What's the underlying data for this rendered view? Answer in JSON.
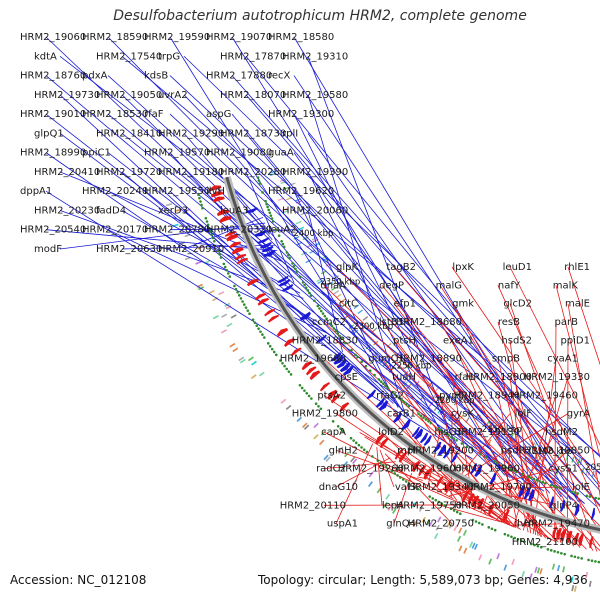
{
  "title": "Desulfobacterium autotrophicum HRM2, complete genome",
  "footer": {
    "accession": "Accession: NC_012108",
    "summary": "Topology: circular; Length: 5,589,073 bp; Genes: 4,936"
  },
  "colors": {
    "forward": "#1a1ad6",
    "reverse": "#e51a1a",
    "backbone": "#555555",
    "gc_skew": "#2e8b2e",
    "label_text": "#1a1a1a"
  },
  "kbp_ticks": [
    {
      "kbp": 2000,
      "label": "2000 kbp"
    },
    {
      "kbp": 2050,
      "label": "2050 kbp"
    },
    {
      "kbp": 2100,
      "label": "2100 kbp"
    },
    {
      "kbp": 2150,
      "label": "2150 kbp"
    },
    {
      "kbp": 2200,
      "label": "2200 kbp"
    },
    {
      "kbp": 2250,
      "label": "2250 kbp"
    },
    {
      "kbp": 2300,
      "label": "2300 kbp"
    },
    {
      "kbp": 2350,
      "label": "2350 kbp"
    },
    {
      "kbp": 2400,
      "label": "2400 kbp"
    }
  ],
  "forward_genes": [
    {
      "name": "HRM2_19060",
      "pos_kbp": 2125
    },
    {
      "name": "HRM2_18590",
      "pos_kbp": 2075
    },
    {
      "name": "HRM2_19590",
      "pos_kbp": 2230
    },
    {
      "name": "HRM2_19070",
      "pos_kbp": 2128
    },
    {
      "name": "HRM2_18580",
      "pos_kbp": 2072
    },
    {
      "name": "kdtA",
      "pos_kbp": 2000
    },
    {
      "name": "HRM2_17540",
      "pos_kbp": 1985
    },
    {
      "name": "trpG",
      "pos_kbp": 1995
    },
    {
      "name": "HRM2_17870",
      "pos_kbp": 2030
    },
    {
      "name": "HRM2_19310",
      "pos_kbp": 2175
    },
    {
      "name": "HRM2_18760",
      "pos_kbp": 2100
    },
    {
      "name": "pdxA",
      "pos_kbp": 2060
    },
    {
      "name": "kdsB",
      "pos_kbp": 2010
    },
    {
      "name": "HRM2_17880",
      "pos_kbp": 2032
    },
    {
      "name": "recX",
      "pos_kbp": 2065
    },
    {
      "name": "HRM2_19730",
      "pos_kbp": 2250
    },
    {
      "name": "HRM2_19050",
      "pos_kbp": 2122
    },
    {
      "name": "uvrA2",
      "pos_kbp": 2070
    },
    {
      "name": "HRM2_18070",
      "pos_kbp": 2045
    },
    {
      "name": "HRM2_19580",
      "pos_kbp": 2228
    },
    {
      "name": "HRM2_19010",
      "pos_kbp": 2118
    },
    {
      "name": "HRM2_18530",
      "pos_kbp": 2068
    },
    {
      "name": "rfaF",
      "pos_kbp": 2050
    },
    {
      "name": "aspG",
      "pos_kbp": 2090
    },
    {
      "name": "HRM2_19300",
      "pos_kbp": 2172
    },
    {
      "name": "glpQ1",
      "pos_kbp": 2105
    },
    {
      "name": "HRM2_18410",
      "pos_kbp": 2060
    },
    {
      "name": "HRM2_19290",
      "pos_kbp": 2170
    },
    {
      "name": "HRM2_18730",
      "pos_kbp": 2098
    },
    {
      "name": "rplI",
      "pos_kbp": 2080
    },
    {
      "name": "HRM2_18990",
      "pos_kbp": 2115
    },
    {
      "name": "ppiC1",
      "pos_kbp": 2095
    },
    {
      "name": "HRM2_19570",
      "pos_kbp": 2225
    },
    {
      "name": "HRM2_19080",
      "pos_kbp": 2130
    },
    {
      "name": "guaA",
      "pos_kbp": 2110
    },
    {
      "name": "HRM2_20410",
      "pos_kbp": 2390
    },
    {
      "name": "HRM2_19720",
      "pos_kbp": 2248
    },
    {
      "name": "HRM2_19180",
      "pos_kbp": 2140
    },
    {
      "name": "HRM2_20280",
      "pos_kbp": 2370
    },
    {
      "name": "HRM2_19390",
      "pos_kbp": 2185
    },
    {
      "name": "dppA1",
      "pos_kbp": 2160
    },
    {
      "name": "HRM2_20240",
      "pos_kbp": 2360
    },
    {
      "name": "HRM2_19550",
      "pos_kbp": 2220
    },
    {
      "name": "ilvH",
      "pos_kbp": 2410
    },
    {
      "name": "HRM2_19620",
      "pos_kbp": 2235
    },
    {
      "name": "HRM2_20230",
      "pos_kbp": 2355
    },
    {
      "name": "fadD4",
      "pos_kbp": 2330
    },
    {
      "name": "xerD3",
      "pos_kbp": 2240
    },
    {
      "name": "leuA3",
      "pos_kbp": 2415
    },
    {
      "name": "HRM2_20060",
      "pos_kbp": 2300
    },
    {
      "name": "HRM2_20540",
      "pos_kbp": 2400
    },
    {
      "name": "HRM2_20170",
      "pos_kbp": 2320
    },
    {
      "name": "HRM2_20780",
      "pos_kbp": 2420
    },
    {
      "name": "HRM2_20320",
      "pos_kbp": 2375
    },
    {
      "name": "leuA2",
      "pos_kbp": 2418
    },
    {
      "name": "modF",
      "pos_kbp": 2425
    },
    {
      "name": "HRM2_20630",
      "pos_kbp": 2405
    },
    {
      "name": "HRM2_20910",
      "pos_kbp": 2430
    }
  ],
  "reverse_genes": [
    {
      "name": "rhlE1",
      "pos_kbp": 1990
    },
    {
      "name": "leuD1",
      "pos_kbp": 1995
    },
    {
      "name": "lpxK",
      "pos_kbp": 2000
    },
    {
      "name": "tagB2",
      "pos_kbp": 2005
    },
    {
      "name": "glpK",
      "pos_kbp": 2015
    },
    {
      "name": "malK",
      "pos_kbp": 2020
    },
    {
      "name": "nafY",
      "pos_kbp": 2025
    },
    {
      "name": "malG",
      "pos_kbp": 2028
    },
    {
      "name": "degP",
      "pos_kbp": 2035
    },
    {
      "name": "dnaA",
      "pos_kbp": 2038
    },
    {
      "name": "malE",
      "pos_kbp": 2032
    },
    {
      "name": "glcD2",
      "pos_kbp": 2042
    },
    {
      "name": "gmk",
      "pos_kbp": 2045
    },
    {
      "name": "efp1",
      "pos_kbp": 2055
    },
    {
      "name": "citC",
      "pos_kbp": 2050
    },
    {
      "name": "parB",
      "pos_kbp": 2075
    },
    {
      "name": "resB",
      "pos_kbp": 2070
    },
    {
      "name": "HRM2_18680",
      "pos_kbp": 2060
    },
    {
      "name": "lstB1",
      "pos_kbp": 2080
    },
    {
      "name": "ccmC2",
      "pos_kbp": 2072
    },
    {
      "name": "ppiD1",
      "pos_kbp": 2065
    },
    {
      "name": "hsdS2",
      "pos_kbp": 2090
    },
    {
      "name": "exeA1",
      "pos_kbp": 2085
    },
    {
      "name": "ptsH",
      "pos_kbp": 2082
    },
    {
      "name": "HRM2_18830",
      "pos_kbp": 2078
    },
    {
      "name": "cyaA1",
      "pos_kbp": 2092
    },
    {
      "name": "smpB",
      "pos_kbp": 2088
    },
    {
      "name": "HRM2_18890",
      "pos_kbp": 2086
    },
    {
      "name": "gumC1",
      "pos_kbp": 2110
    },
    {
      "name": "HRM2_19680",
      "pos_kbp": 2115
    },
    {
      "name": "HRM2_19330",
      "pos_kbp": 2100
    },
    {
      "name": "HRM2_18900",
      "pos_kbp": 2094
    },
    {
      "name": "rfaL",
      "pos_kbp": 2140
    },
    {
      "name": "tuaH",
      "pos_kbp": 2130
    },
    {
      "name": "cpsE",
      "pos_kbp": 2125
    },
    {
      "name": "HRM2_19460",
      "pos_kbp": 2108
    },
    {
      "name": "HRM2_18940",
      "pos_kbp": 2096
    },
    {
      "name": "pyrK",
      "pos_kbp": 2150
    },
    {
      "name": "rfaG2",
      "pos_kbp": 2145
    },
    {
      "name": "ptsA2",
      "pos_kbp": 2102
    },
    {
      "name": "gyrA",
      "pos_kbp": 2170
    },
    {
      "name": "lolF",
      "pos_kbp": 2165
    },
    {
      "name": "cysK",
      "pos_kbp": 2160
    },
    {
      "name": "carB1",
      "pos_kbp": 2155
    },
    {
      "name": "HRM2_19800",
      "pos_kbp": 2120
    },
    {
      "name": "hsdM2",
      "pos_kbp": 2118
    },
    {
      "name": "HRM2_19130",
      "pos_kbp": 2104
    },
    {
      "name": "hisC1",
      "pos_kbp": 2180
    },
    {
      "name": "lolD2",
      "pos_kbp": 2168
    },
    {
      "name": "capA",
      "pos_kbp": 2158
    },
    {
      "name": "HRM2_19850",
      "pos_kbp": 2122
    },
    {
      "name": "hsdR2",
      "pos_kbp": 2116
    },
    {
      "name": "HRM2_19200",
      "pos_kbp": 2106
    },
    {
      "name": "mpl",
      "pos_kbp": 2200
    },
    {
      "name": "glnH2",
      "pos_kbp": 2185
    },
    {
      "name": "cysS1",
      "pos_kbp": 2162
    },
    {
      "name": "HRM2_19960",
      "pos_kbp": 2135
    },
    {
      "name": "HRM2_19600",
      "pos_kbp": 2112
    },
    {
      "name": "HRM2_19260",
      "pos_kbp": 2107
    },
    {
      "name": "radC2",
      "pos_kbp": 2210
    },
    {
      "name": "lolE",
      "pos_kbp": 2172
    },
    {
      "name": "HRM2_19700",
      "pos_kbp": 2114
    },
    {
      "name": "HRM2_19340",
      "pos_kbp": 2109
    },
    {
      "name": "valS",
      "pos_kbp": 2225
    },
    {
      "name": "dnaG10",
      "pos_kbp": 2215
    },
    {
      "name": "glnP4",
      "pos_kbp": 2190
    },
    {
      "name": "HRM2_20050",
      "pos_kbp": 2142
    },
    {
      "name": "HRM2_19750",
      "pos_kbp": 2117
    },
    {
      "name": "lepA",
      "pos_kbp": 2228
    },
    {
      "name": "HRM2_20110",
      "pos_kbp": 2148
    },
    {
      "name": "HRM2_19470",
      "pos_kbp": 2111
    },
    {
      "name": "ilvY",
      "pos_kbp": 2240
    },
    {
      "name": "HRM2_20750",
      "pos_kbp": 2220
    },
    {
      "name": "glnQ4",
      "pos_kbp": 2195
    },
    {
      "name": "uspA1",
      "pos_kbp": 2232
    },
    {
      "name": "HRM2_21100",
      "pos_kbp": 2245
    }
  ]
}
